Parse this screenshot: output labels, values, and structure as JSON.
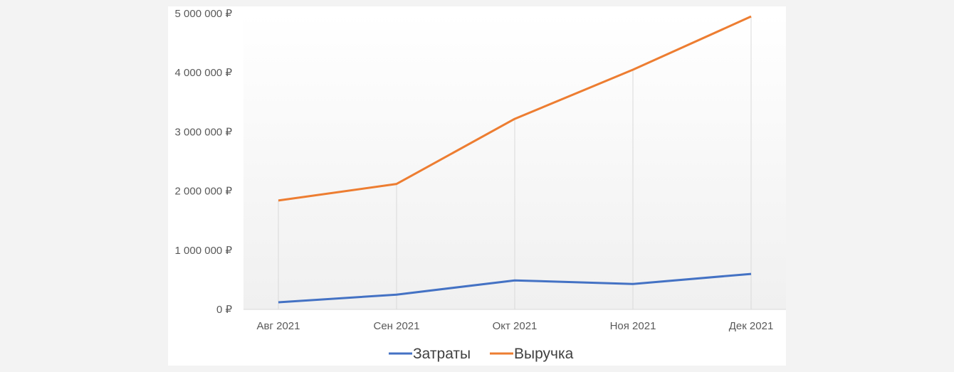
{
  "chart_data": {
    "type": "line",
    "categories": [
      "Авг 2021",
      "Сен 2021",
      "Окт 2021",
      "Ноя 2021",
      "Дек 2021"
    ],
    "series": [
      {
        "name": "Затраты",
        "color": "#4472c4",
        "values": [
          120000,
          250000,
          490000,
          430000,
          600000
        ]
      },
      {
        "name": "Выручка",
        "color": "#ed7d31",
        "values": [
          1840000,
          2120000,
          3220000,
          4050000,
          4950000
        ]
      }
    ],
    "ylim": [
      0,
      5000000
    ],
    "yticks": [
      "0 ₽",
      "1 000 000 ₽",
      "2 000 000 ₽",
      "3 000 000 ₽",
      "4 000 000 ₽",
      "5 000 000 ₽"
    ],
    "grid": "vertical at categories",
    "legend": "bottom"
  }
}
